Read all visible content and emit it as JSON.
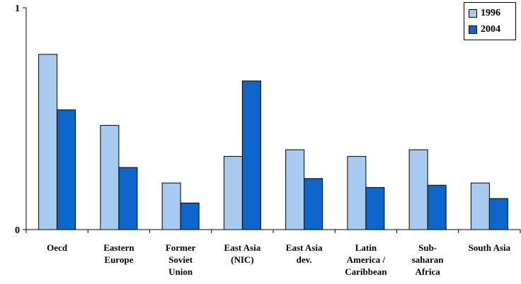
{
  "chart_data": {
    "type": "bar",
    "categories": [
      [
        "Oecd"
      ],
      [
        "Eastern",
        "Europe"
      ],
      [
        "Former",
        "Soviet",
        "Union"
      ],
      [
        "East Asia",
        "(NIC)"
      ],
      [
        "East Asia",
        "dev."
      ],
      [
        "Latin",
        "America /",
        "Caribbean"
      ],
      [
        "Sub-",
        "saharan",
        "Africa"
      ],
      [
        "South Asia"
      ]
    ],
    "series": [
      {
        "name": "1996",
        "color": "#a6caf0",
        "values": [
          0.79,
          0.47,
          0.21,
          0.33,
          0.36,
          0.33,
          0.36,
          0.21
        ]
      },
      {
        "name": "2004",
        "color": "#0c66cc",
        "values": [
          0.54,
          0.28,
          0.12,
          0.67,
          0.23,
          0.19,
          0.2,
          0.14
        ]
      }
    ],
    "ylim": [
      0,
      1
    ],
    "y_ticks": [
      "0",
      "1"
    ],
    "legend_position": "top-right",
    "grid": false
  }
}
